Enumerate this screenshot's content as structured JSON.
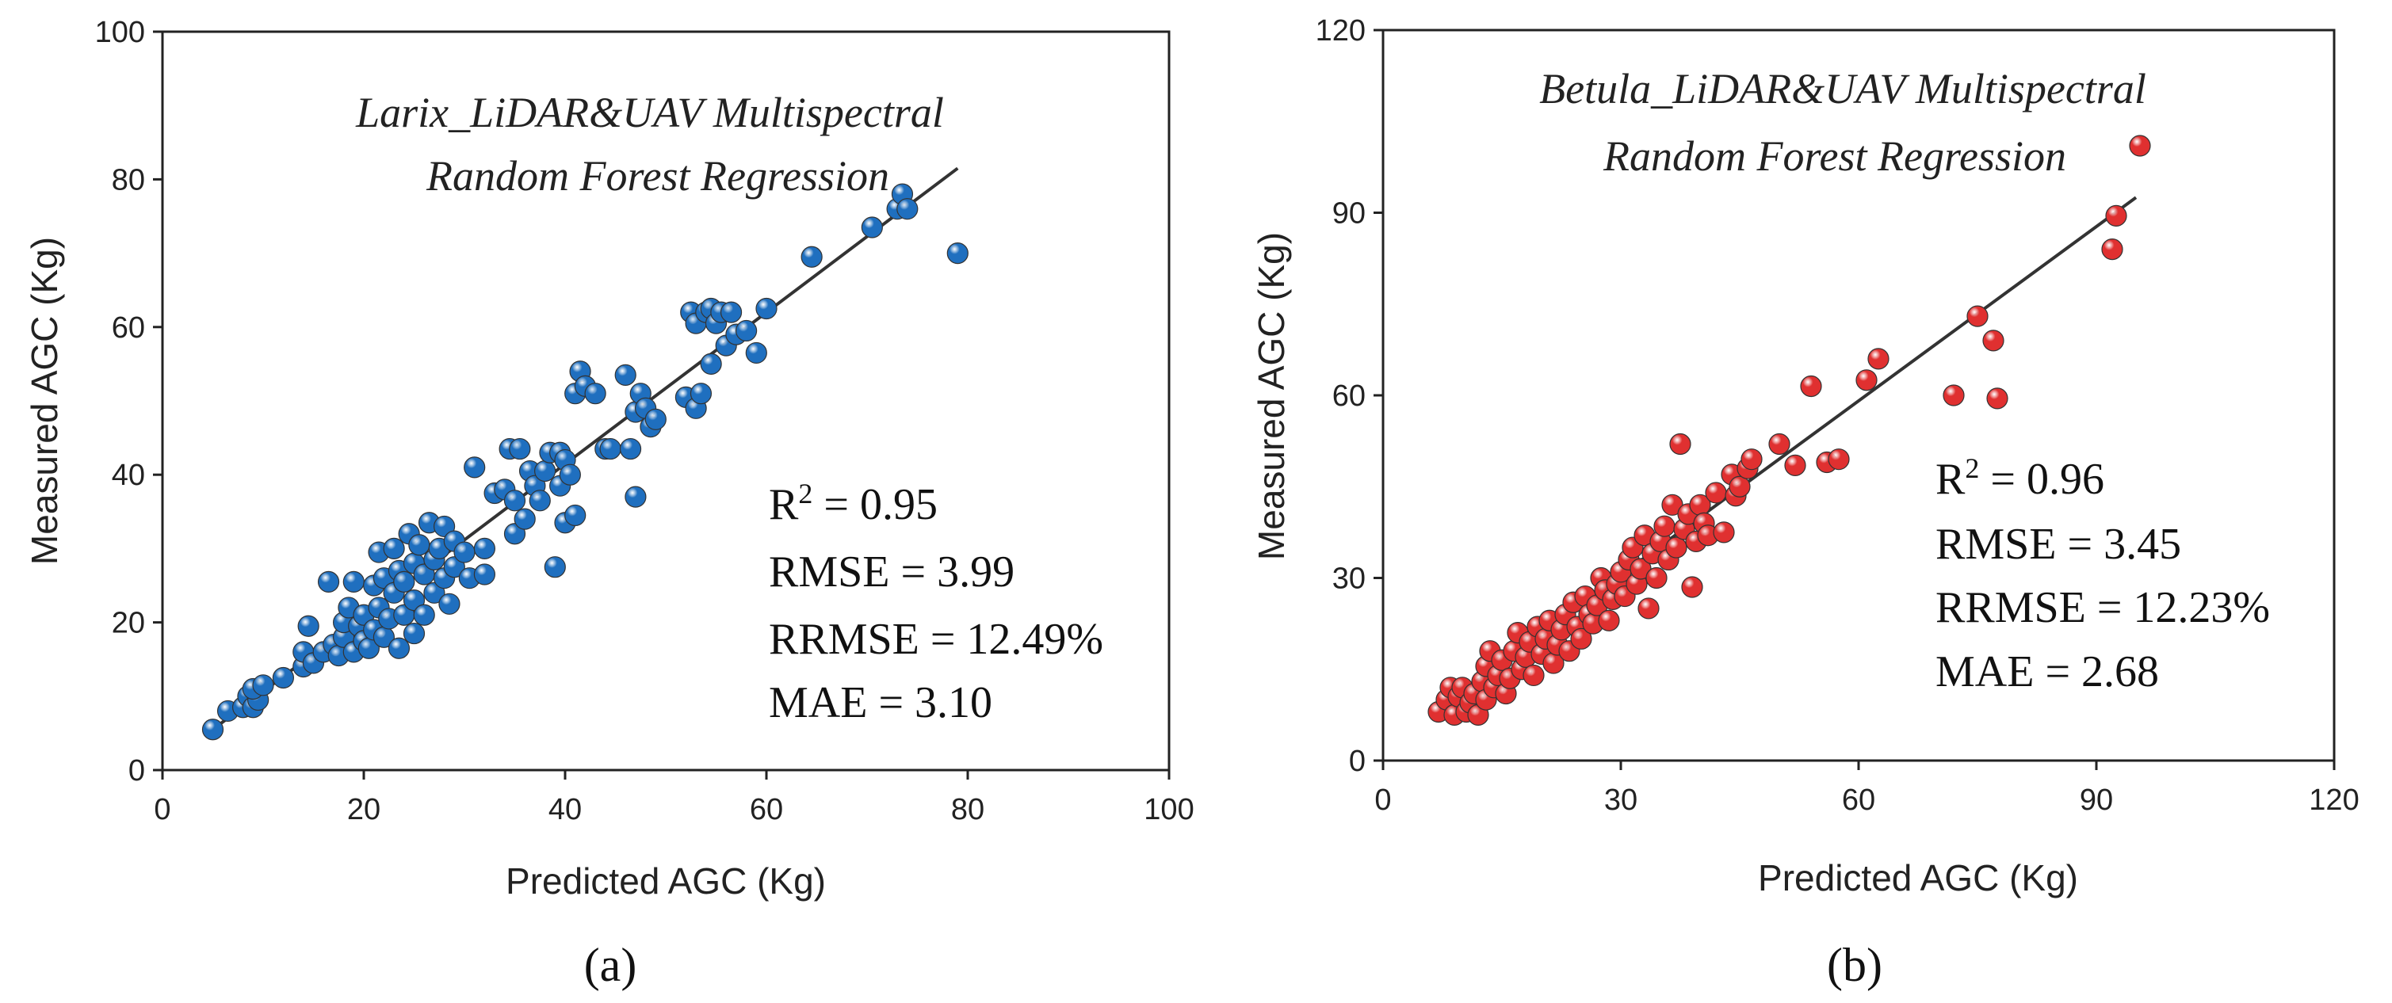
{
  "chart_data": [
    {
      "type": "scatter",
      "panel_label": "(a)",
      "title_lines": [
        "Larix_LiDAR&UAV Multispectral",
        "Random Forest Regression"
      ],
      "xlabel": "Predicted AGC (Kg)",
      "ylabel": "Measured AGC (Kg)",
      "xlim": [
        0,
        100
      ],
      "ylim": [
        0,
        100
      ],
      "xticks": [
        0,
        20,
        40,
        60,
        80,
        100
      ],
      "yticks": [
        0,
        20,
        40,
        60,
        80,
        100
      ],
      "stats": {
        "r2_prefix": "R",
        "r2_sup": "2",
        "r2_value": " = 0.95",
        "rmse": "RMSE = 3.99",
        "rrmse": "RRMSE = 12.49%",
        "mae": "MAE = 3.10"
      },
      "fit_line": [
        [
          5,
          5.5
        ],
        [
          79,
          81.5
        ]
      ],
      "point_color": "#1f6fbf",
      "points": [
        [
          5,
          5.5
        ],
        [
          6.5,
          8
        ],
        [
          8,
          8.5
        ],
        [
          8.5,
          10
        ],
        [
          9,
          8.5
        ],
        [
          9.5,
          9.5
        ],
        [
          9,
          11
        ],
        [
          10,
          11.5
        ],
        [
          12,
          12.5
        ],
        [
          14,
          14
        ],
        [
          14,
          16
        ],
        [
          14.5,
          19.5
        ],
        [
          15,
          14.5
        ],
        [
          16,
          16
        ],
        [
          16.5,
          25.5
        ],
        [
          17,
          17
        ],
        [
          17.5,
          15.5
        ],
        [
          18,
          18
        ],
        [
          18,
          20
        ],
        [
          18.5,
          22
        ],
        [
          19,
          25.5
        ],
        [
          19,
          16
        ],
        [
          19.5,
          19.5
        ],
        [
          20,
          17.5
        ],
        [
          20,
          21
        ],
        [
          20.5,
          16.5
        ],
        [
          21,
          19
        ],
        [
          21,
          25
        ],
        [
          21.5,
          22
        ],
        [
          21.5,
          29.5
        ],
        [
          22,
          18
        ],
        [
          22,
          26
        ],
        [
          22.5,
          20.5
        ],
        [
          23,
          24
        ],
        [
          23,
          30
        ],
        [
          23.5,
          27
        ],
        [
          23.5,
          16.5
        ],
        [
          24,
          21
        ],
        [
          24,
          25.5
        ],
        [
          24.5,
          32
        ],
        [
          25,
          18.5
        ],
        [
          25,
          23
        ],
        [
          25,
          28
        ],
        [
          25.5,
          30.5
        ],
        [
          26,
          21
        ],
        [
          26,
          26.5
        ],
        [
          26.5,
          33.5
        ],
        [
          27,
          24
        ],
        [
          27,
          28.5
        ],
        [
          27.5,
          30
        ],
        [
          28,
          26
        ],
        [
          28,
          33
        ],
        [
          28.5,
          22.5
        ],
        [
          29,
          27.5
        ],
        [
          29,
          31
        ],
        [
          30,
          29.5
        ],
        [
          30.5,
          26
        ],
        [
          31,
          41
        ],
        [
          32,
          26.5
        ],
        [
          32,
          30
        ],
        [
          33,
          37.5
        ],
        [
          34,
          38
        ],
        [
          34.5,
          43.5
        ],
        [
          35,
          32
        ],
        [
          35,
          36.5
        ],
        [
          35.5,
          43.5
        ],
        [
          36,
          34
        ],
        [
          36.5,
          40.5
        ],
        [
          37,
          38.5
        ],
        [
          37.5,
          36.5
        ],
        [
          38,
          40.5
        ],
        [
          38.5,
          43
        ],
        [
          39,
          27.5
        ],
        [
          39.5,
          38.5
        ],
        [
          39.5,
          43
        ],
        [
          40,
          33.5
        ],
        [
          40,
          42
        ],
        [
          40.5,
          40
        ],
        [
          41,
          34.5
        ],
        [
          41,
          51
        ],
        [
          41.5,
          54
        ],
        [
          42,
          52
        ],
        [
          43,
          51
        ],
        [
          44,
          43.5
        ],
        [
          44.5,
          43.5
        ],
        [
          46,
          53.5
        ],
        [
          46.5,
          43.5
        ],
        [
          47,
          37
        ],
        [
          47,
          48.5
        ],
        [
          47.5,
          51
        ],
        [
          48,
          49
        ],
        [
          48.5,
          46.5
        ],
        [
          49,
          47.5
        ],
        [
          52,
          50.5
        ],
        [
          52.5,
          62
        ],
        [
          53,
          49
        ],
        [
          53,
          60.5
        ],
        [
          53.5,
          51
        ],
        [
          54,
          62
        ],
        [
          54.5,
          55
        ],
        [
          54.5,
          62.5
        ],
        [
          55,
          60.5
        ],
        [
          55.5,
          62
        ],
        [
          56,
          57.5
        ],
        [
          56.5,
          62
        ],
        [
          57,
          59
        ],
        [
          58,
          59.5
        ],
        [
          59,
          56.5
        ],
        [
          60,
          62.5
        ],
        [
          64.5,
          69.5
        ],
        [
          70.5,
          73.5
        ],
        [
          73,
          76
        ],
        [
          73.5,
          78
        ],
        [
          74,
          76
        ],
        [
          79,
          70
        ]
      ]
    },
    {
      "type": "scatter",
      "panel_label": "(b)",
      "title_lines": [
        "Betula_LiDAR&UAV Multispectral",
        "Random Forest Regression"
      ],
      "xlabel": "Predicted AGC (Kg)",
      "ylabel": "Measured AGC (Kg)",
      "xlim": [
        0,
        120
      ],
      "ylim": [
        0,
        120
      ],
      "xticks": [
        0,
        30,
        60,
        90,
        120
      ],
      "yticks": [
        0,
        30,
        60,
        90,
        120
      ],
      "stats": {
        "r2_prefix": "R",
        "r2_sup": "2",
        "r2_value": " = 0.96",
        "rmse": "RMSE = 3.45",
        "rrmse": "RRMSE = 12.23%",
        "mae": "MAE = 2.68"
      },
      "fit_line": [
        [
          7,
          8.5
        ],
        [
          95,
          92.5
        ]
      ],
      "point_color": "#e03030",
      "points": [
        [
          7,
          8
        ],
        [
          8,
          10
        ],
        [
          8.5,
          12
        ],
        [
          9,
          7.5
        ],
        [
          9.5,
          10.5
        ],
        [
          10,
          12
        ],
        [
          10.5,
          8
        ],
        [
          11,
          9.5
        ],
        [
          11.5,
          11
        ],
        [
          12,
          7.5
        ],
        [
          12.5,
          13
        ],
        [
          13,
          10
        ],
        [
          13,
          15.5
        ],
        [
          13.5,
          18
        ],
        [
          14,
          12
        ],
        [
          14.5,
          14
        ],
        [
          15,
          16.5
        ],
        [
          15.5,
          11
        ],
        [
          16,
          13.5
        ],
        [
          16.5,
          18
        ],
        [
          17,
          21
        ],
        [
          17.5,
          15
        ],
        [
          18,
          17
        ],
        [
          18.5,
          19.5
        ],
        [
          19,
          14
        ],
        [
          19.5,
          22
        ],
        [
          20,
          17.5
        ],
        [
          20.5,
          20
        ],
        [
          21,
          23
        ],
        [
          21.5,
          16
        ],
        [
          22,
          19
        ],
        [
          22.5,
          21.5
        ],
        [
          23,
          24
        ],
        [
          23.5,
          18
        ],
        [
          24,
          26
        ],
        [
          24.5,
          22
        ],
        [
          25,
          20
        ],
        [
          25.5,
          27
        ],
        [
          26,
          24
        ],
        [
          26.5,
          22.5
        ],
        [
          27,
          25.5
        ],
        [
          27.5,
          30
        ],
        [
          28,
          28
        ],
        [
          28.5,
          23
        ],
        [
          29,
          26.5
        ],
        [
          29.5,
          29
        ],
        [
          30,
          31
        ],
        [
          30.5,
          27
        ],
        [
          31,
          33
        ],
        [
          31.5,
          35
        ],
        [
          32,
          29
        ],
        [
          32.5,
          31.5
        ],
        [
          33,
          37
        ],
        [
          33.5,
          25
        ],
        [
          34,
          34
        ],
        [
          34.5,
          30
        ],
        [
          35,
          36
        ],
        [
          35.5,
          38.5
        ],
        [
          36,
          33
        ],
        [
          36.5,
          42
        ],
        [
          37,
          35
        ],
        [
          37.5,
          52
        ],
        [
          38,
          38
        ],
        [
          38.5,
          40.5
        ],
        [
          39,
          28.5
        ],
        [
          39.5,
          36
        ],
        [
          40,
          42
        ],
        [
          40.5,
          39
        ],
        [
          41,
          37
        ],
        [
          42,
          44
        ],
        [
          43,
          37.5
        ],
        [
          44,
          47
        ],
        [
          44.5,
          43.5
        ],
        [
          45,
          45
        ],
        [
          46,
          48
        ],
        [
          46.5,
          49.5
        ],
        [
          50,
          52
        ],
        [
          52,
          48.5
        ],
        [
          54,
          61.5
        ],
        [
          56,
          49
        ],
        [
          57.5,
          49.5
        ],
        [
          61,
          62.5
        ],
        [
          62.5,
          66
        ],
        [
          72,
          60
        ],
        [
          75,
          73
        ],
        [
          77,
          69
        ],
        [
          77.5,
          59.5
        ],
        [
          92,
          84
        ],
        [
          92.5,
          89.5
        ],
        [
          95.5,
          101
        ]
      ]
    }
  ]
}
